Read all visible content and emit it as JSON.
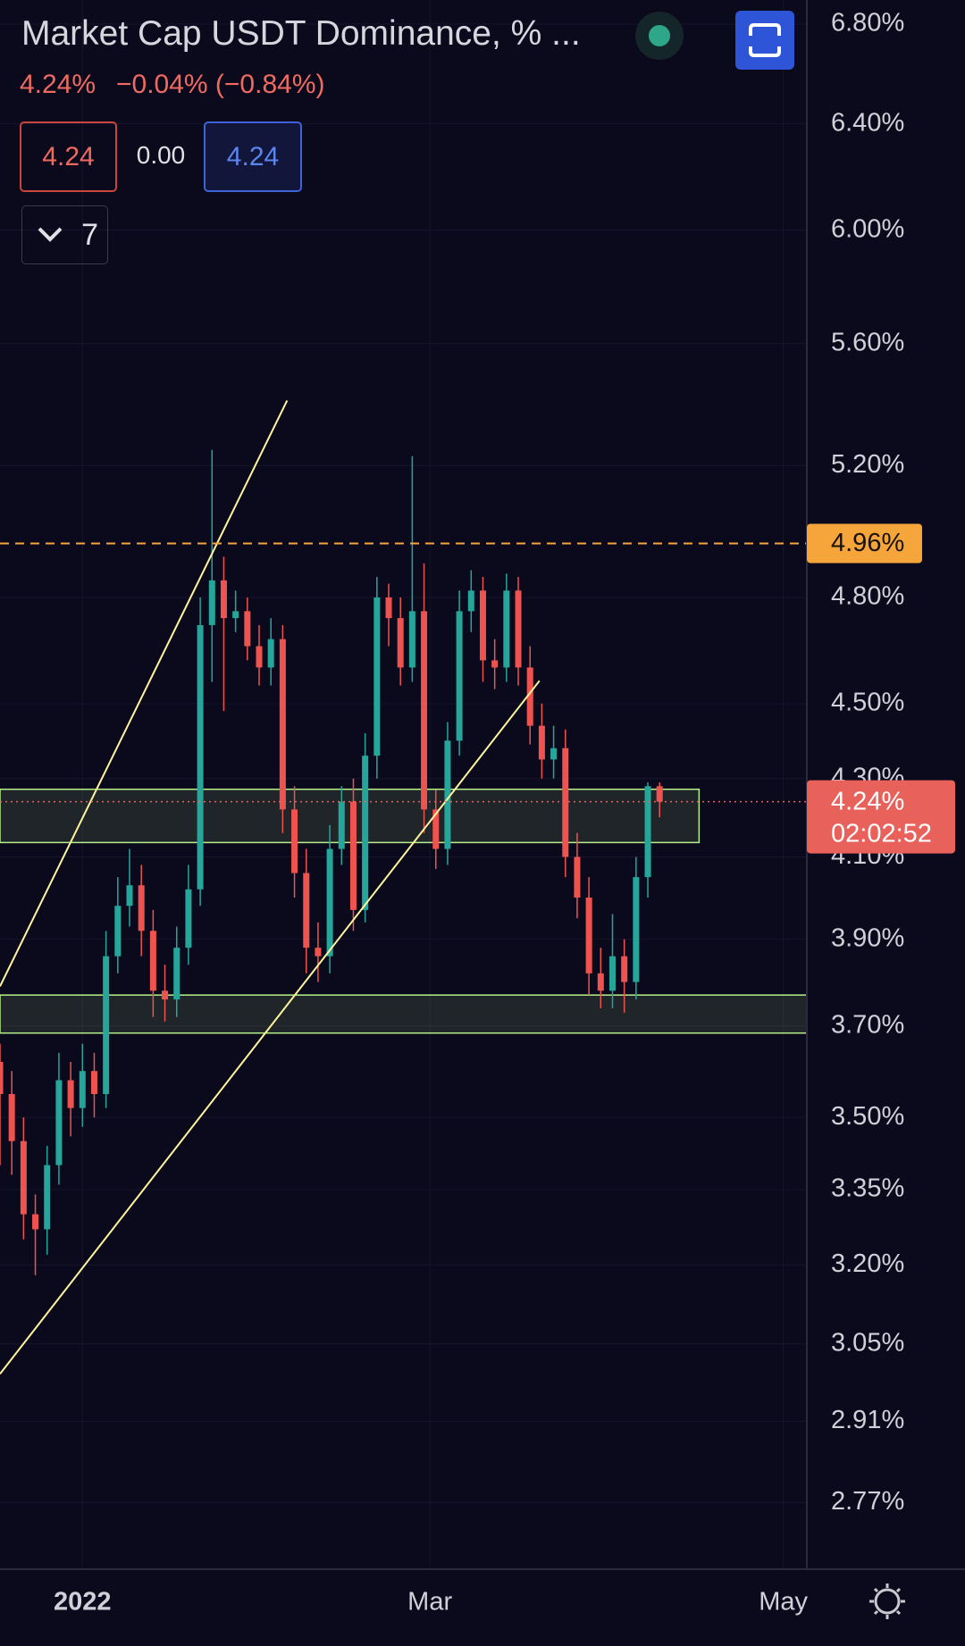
{
  "header": {
    "title": "Market Cap USDT Dominance, % ...",
    "last": "4.24%",
    "change": "−0.04% (−0.84%)",
    "boxes": [
      "4.24",
      "0.00",
      "4.24"
    ],
    "indicators": "7"
  },
  "chart_data": {
    "type": "candlestick",
    "log_scale": true,
    "up_color": "#26a69a",
    "down_color": "#ef5350",
    "x": [
      0,
      2,
      4,
      6,
      8,
      10,
      12,
      14,
      16,
      18,
      20,
      22,
      24,
      26,
      28,
      30,
      32,
      34,
      36,
      38,
      40,
      42,
      44,
      46,
      48,
      50,
      52,
      54,
      56,
      58,
      60,
      62,
      64,
      66,
      68,
      70,
      72,
      74,
      76,
      78,
      80,
      82,
      84,
      86,
      88,
      90,
      92,
      94,
      96,
      98,
      100,
      102,
      104,
      106,
      108,
      110,
      112
    ],
    "open": [
      3.62,
      3.55,
      3.45,
      3.3,
      3.27,
      3.4,
      3.58,
      3.52,
      3.6,
      3.55,
      3.86,
      3.98,
      4.03,
      3.92,
      3.78,
      3.76,
      3.88,
      4.02,
      4.72,
      4.85,
      4.74,
      4.76,
      4.66,
      4.6,
      4.68,
      4.22,
      4.06,
      3.88,
      3.86,
      4.12,
      4.24,
      3.97,
      4.36,
      4.8,
      4.74,
      4.6,
      4.76,
      4.22,
      4.12,
      4.4,
      4.76,
      4.82,
      4.62,
      4.6,
      4.82,
      4.6,
      4.44,
      4.35,
      4.38,
      4.1,
      4.0,
      3.82,
      3.78,
      3.86,
      3.8,
      4.05,
      4.28
    ],
    "high": [
      3.66,
      3.6,
      3.5,
      3.34,
      3.44,
      3.64,
      3.62,
      3.66,
      3.64,
      3.92,
      4.05,
      4.12,
      4.08,
      3.97,
      3.84,
      3.93,
      4.08,
      4.8,
      5.25,
      4.92,
      4.82,
      4.8,
      4.72,
      4.74,
      4.72,
      4.28,
      4.12,
      3.94,
      4.18,
      4.28,
      4.3,
      4.42,
      4.86,
      4.84,
      4.8,
      5.23,
      4.9,
      4.27,
      4.45,
      4.82,
      4.88,
      4.86,
      4.68,
      4.87,
      4.86,
      4.66,
      4.5,
      4.44,
      4.43,
      4.16,
      4.05,
      3.88,
      3.96,
      3.9,
      4.1,
      4.29,
      4.29
    ],
    "low": [
      3.4,
      3.38,
      3.25,
      3.18,
      3.22,
      3.36,
      3.46,
      3.48,
      3.5,
      3.52,
      3.82,
      3.93,
      3.86,
      3.72,
      3.71,
      3.72,
      3.84,
      3.98,
      4.56,
      4.48,
      4.7,
      4.62,
      4.55,
      4.55,
      4.16,
      4.0,
      3.82,
      3.8,
      3.82,
      4.08,
      3.92,
      3.94,
      4.3,
      4.66,
      4.55,
      4.56,
      4.16,
      4.07,
      4.08,
      4.36,
      4.7,
      4.56,
      4.54,
      4.56,
      4.55,
      4.39,
      4.3,
      4.3,
      4.05,
      3.95,
      3.77,
      3.74,
      3.74,
      3.73,
      3.76,
      4.0,
      4.2
    ],
    "close": [
      3.55,
      3.45,
      3.3,
      3.27,
      3.4,
      3.58,
      3.52,
      3.6,
      3.55,
      3.86,
      3.98,
      4.03,
      3.92,
      3.78,
      3.76,
      3.88,
      4.02,
      4.72,
      4.85,
      4.74,
      4.76,
      4.66,
      4.6,
      4.68,
      4.22,
      4.06,
      3.88,
      3.86,
      4.12,
      4.24,
      3.97,
      4.36,
      4.8,
      4.74,
      4.6,
      4.76,
      4.22,
      4.12,
      4.4,
      4.76,
      4.82,
      4.62,
      4.6,
      4.82,
      4.6,
      4.44,
      4.35,
      4.38,
      4.1,
      4.0,
      3.82,
      3.78,
      3.86,
      3.8,
      4.05,
      4.28,
      4.24
    ],
    "xlim": [
      0,
      137
    ],
    "ylim": [
      2.66,
      6.9
    ],
    "xticks": [
      {
        "value": 14,
        "label": "2022"
      },
      {
        "value": 73,
        "label": "Mar"
      },
      {
        "value": 133,
        "label": "May"
      }
    ],
    "yticks": [
      {
        "value": 6.8,
        "label": "6.80%"
      },
      {
        "value": 6.4,
        "label": "6.40%"
      },
      {
        "value": 6.0,
        "label": "6.00%"
      },
      {
        "value": 5.6,
        "label": "5.60%"
      },
      {
        "value": 5.2,
        "label": "5.20%"
      },
      {
        "value": 4.8,
        "label": "4.80%"
      },
      {
        "value": 4.5,
        "label": "4.50%"
      },
      {
        "value": 4.3,
        "label": "4.30%"
      },
      {
        "value": 4.1,
        "label": "4.10%"
      },
      {
        "value": 3.9,
        "label": "3.90%"
      },
      {
        "value": 3.7,
        "label": "3.70%"
      },
      {
        "value": 3.5,
        "label": "3.50%"
      },
      {
        "value": 3.35,
        "label": "3.35%"
      },
      {
        "value": 3.2,
        "label": "3.20%"
      },
      {
        "value": 3.05,
        "label": "3.05%"
      },
      {
        "value": 2.91,
        "label": "2.91%"
      },
      {
        "value": 2.77,
        "label": "2.77%"
      }
    ],
    "grid": true,
    "zones": [
      {
        "x": [
          0,
          118.7
        ],
        "y": [
          4.136,
          4.272
        ],
        "color": "#b6f089"
      },
      {
        "x": [
          0,
          137
        ],
        "y": [
          3.684,
          3.77
        ],
        "color": "#b6f089"
      }
    ],
    "lines": [
      {
        "x": [
          0,
          48.75
        ],
        "y": [
          3.79,
          5.41
        ],
        "color": "#fff59d"
      },
      {
        "x": [
          0,
          91.6
        ],
        "y": [
          2.995,
          4.563
        ],
        "color": "#fff59d"
      }
    ],
    "hline": {
      "value": 4.96,
      "label": "4.96%",
      "color": "#f5a53a"
    },
    "last_price": {
      "value": 4.24,
      "label": "4.24%",
      "countdown": "02:02:52",
      "color": "#e8615a"
    }
  }
}
